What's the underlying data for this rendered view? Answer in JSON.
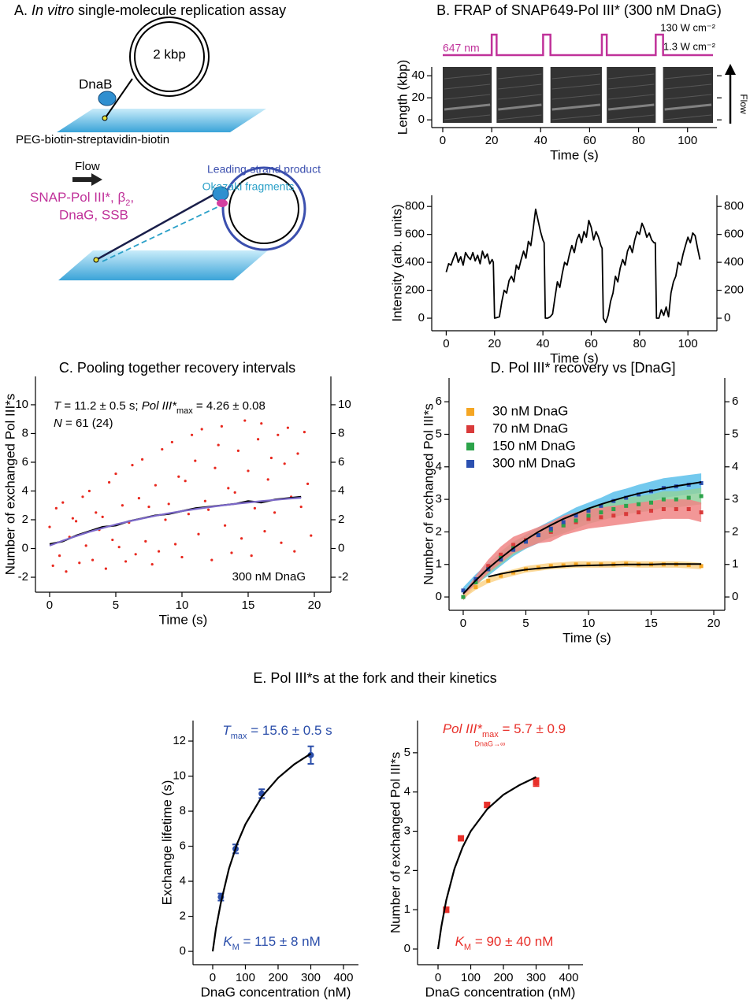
{
  "panel_a": {
    "title": [
      "A. ",
      "In vitro",
      " single-molecule replication assay"
    ],
    "dnab": "DnaB",
    "plasmid": "2 kbp",
    "surface": "PEG-biotin-streptavidin-biotin",
    "flow": "Flow",
    "proteins": [
      "SNAP-Pol III*, β",
      "2",
      ",",
      "DnaG, SSB"
    ],
    "leading": "Leading-strand product",
    "okazaki": "Okazaki fragments"
  },
  "panel_e": {
    "title": "E. Pol III*s at the fork and their kinetics"
  },
  "chart_data": [
    {
      "type": "kymograph",
      "title": "B. FRAP of SNAP649-Pol III* (300 nM DnaG)",
      "xlabel": "Time (s)",
      "ylabel": "Length (kbp)",
      "side_label": "Flow",
      "xlim": [
        -4.5,
        112
      ],
      "ylim": [
        -7,
        48
      ],
      "xticks": [
        0,
        20,
        40,
        60,
        80,
        100
      ],
      "yticks": [
        0,
        20,
        40
      ],
      "pulses": [
        [
          20,
          22
        ],
        [
          41,
          44
        ],
        [
          65,
          67
        ],
        [
          87,
          90
        ]
      ],
      "pulse_color": "#c0329a",
      "pulse_label": "647 nm",
      "high_label": "130 W cm⁻²",
      "low_label": "1.3 W cm⁻²"
    },
    {
      "type": "line",
      "xlabel": "Time (s)",
      "ylabel": "Intensity (arb. units)",
      "xlim": [
        -6,
        112
      ],
      "ylim": [
        -90,
        880
      ],
      "y2lim": [
        -90,
        880
      ],
      "xticks": [
        0,
        20,
        40,
        60,
        80,
        100
      ],
      "yticks": [
        0,
        200,
        400,
        600,
        800
      ],
      "y2ticks": [
        0,
        200,
        400,
        600,
        800
      ],
      "x": [
        0,
        1,
        2,
        3,
        4,
        5,
        6,
        7,
        8,
        9,
        10,
        11,
        12,
        13,
        14,
        15,
        16,
        17,
        18,
        19,
        19.5,
        20,
        21,
        22,
        23,
        24,
        25,
        26,
        27,
        28,
        29,
        30,
        31,
        32,
        33,
        34,
        35,
        36,
        37,
        38,
        39,
        40,
        40.5,
        41,
        42,
        43,
        44,
        45,
        46,
        47,
        48,
        49,
        50,
        51,
        52,
        53,
        54,
        55,
        56,
        57,
        58,
        59,
        60,
        61,
        62,
        63,
        64,
        64.5,
        65,
        66,
        67,
        68,
        69,
        70,
        71,
        72,
        73,
        74,
        75,
        76,
        77,
        78,
        79,
        80,
        81,
        82,
        83,
        84,
        85,
        86,
        86.5,
        87,
        88,
        89,
        90,
        91,
        92,
        93,
        94,
        95,
        96,
        97,
        98,
        99,
        100,
        101,
        102,
        103,
        104,
        105
      ],
      "series": [
        {
          "color": "#000000",
          "values": [
            330,
            390,
            380,
            430,
            470,
            400,
            440,
            380,
            470,
            440,
            420,
            470,
            410,
            450,
            390,
            480,
            430,
            460,
            390,
            420,
            400,
            0,
            5,
            10,
            120,
            200,
            180,
            270,
            300,
            260,
            380,
            350,
            420,
            480,
            430,
            550,
            520,
            640,
            780,
            700,
            620,
            560,
            540,
            0,
            0,
            10,
            30,
            150,
            260,
            220,
            320,
            400,
            380,
            460,
            520,
            470,
            560,
            600,
            540,
            620,
            580,
            700,
            650,
            560,
            620,
            580,
            520,
            500,
            0,
            -30,
            20,
            120,
            180,
            300,
            260,
            360,
            420,
            380,
            480,
            520,
            470,
            560,
            620,
            600,
            680,
            640,
            580,
            610,
            560,
            540,
            540,
            0,
            0,
            60,
            20,
            80,
            10,
            180,
            260,
            300,
            400,
            380,
            460,
            520,
            580,
            540,
            610,
            590,
            500,
            420
          ]
        }
      ]
    },
    {
      "type": "scatter",
      "title": "C. Pooling together recovery intervals",
      "xlabel": "Time (s)",
      "ylabel": "Number of exchanged Pol III*s",
      "xlim": [
        -1.07,
        21.25
      ],
      "ylim": [
        -3.04,
        11.97
      ],
      "y2lim": [
        -3.04,
        11.97
      ],
      "xticks": [
        0,
        5,
        10,
        15,
        20
      ],
      "yticks": [
        -2,
        0,
        2,
        4,
        6,
        8,
        10
      ],
      "y2ticks": [
        -2,
        0,
        2,
        4,
        6,
        8,
        10
      ],
      "annotations": {
        "stats": [
          "T",
          " = 11.2 ± 0.5 s; ",
          "Pol III*",
          "max",
          " = 4.26 ± 0.08"
        ],
        "n": [
          "N",
          " = 61 (24)"
        ],
        "condition": "300 nM DnaG"
      },
      "points": {
        "color": "#e8281e",
        "marker": "circle",
        "x": [
          0,
          0.25,
          0.5,
          0.75,
          1,
          1.25,
          1.5,
          1.75,
          2,
          2.25,
          2.5,
          2.75,
          3,
          3.25,
          3.5,
          3.75,
          4,
          4.25,
          4.5,
          4.75,
          5,
          5.25,
          5.5,
          5.75,
          6,
          6.25,
          6.5,
          6.75,
          7,
          7.25,
          7.5,
          7.75,
          8,
          8.25,
          8.5,
          8.75,
          9,
          9.25,
          9.5,
          9.75,
          10,
          10.25,
          10.5,
          10.75,
          11,
          11.25,
          11.5,
          11.75,
          12,
          12.25,
          12.5,
          12.75,
          13,
          13.25,
          13.5,
          13.75,
          14,
          14.25,
          14.5,
          14.75,
          15,
          15.25,
          15.5,
          15.75,
          16,
          16.25,
          16.5,
          16.75,
          17,
          17.25,
          17.5,
          17.75,
          18,
          18.25,
          18.5,
          18.75,
          19,
          19.25,
          19.5,
          19.75
        ],
        "values": [
          1.5,
          -1.2,
          2.8,
          -0.5,
          3.2,
          -1.6,
          0.8,
          2.1,
          1.9,
          -1.0,
          3.6,
          0.2,
          4.0,
          -0.8,
          2.5,
          1.3,
          2.2,
          -1.4,
          4.6,
          0.6,
          5.2,
          0.1,
          3.0,
          -0.9,
          1.8,
          5.8,
          -0.4,
          3.5,
          6.2,
          0.5,
          2.9,
          -1.1,
          4.4,
          -0.2,
          6.9,
          2.0,
          3.1,
          7.4,
          0.3,
          5.0,
          -0.6,
          4.7,
          2.4,
          7.9,
          6.1,
          1.0,
          8.3,
          3.3,
          2.7,
          -0.8,
          5.6,
          7.2,
          8.5,
          1.6,
          4.2,
          -0.3,
          3.9,
          6.8,
          0.7,
          8.9,
          5.4,
          -0.5,
          2.8,
          7.6,
          8.7,
          1.2,
          4.8,
          6.3,
          2.5,
          7.9,
          0.4,
          5.9,
          8.4,
          3.6,
          -0.2,
          6.6,
          2.9,
          8.1,
          4.5,
          0.9
        ]
      },
      "curves": [
        {
          "color": "#000000",
          "x": [
            0,
            1,
            2,
            3,
            4,
            5,
            6,
            7,
            8,
            9,
            10,
            11,
            12,
            13,
            14,
            15,
            16,
            17,
            18,
            19
          ],
          "values": [
            0.3,
            0.5,
            0.9,
            1.2,
            1.5,
            1.6,
            1.9,
            2.1,
            2.3,
            2.4,
            2.6,
            2.8,
            2.9,
            3.0,
            3.1,
            3.3,
            3.2,
            3.4,
            3.5,
            3.6
          ]
        },
        {
          "color": "#7b68c8",
          "x": [
            0,
            1,
            2,
            3,
            4,
            5,
            6,
            7,
            8,
            9,
            10,
            11,
            12,
            13,
            14,
            15,
            16,
            17,
            18,
            19
          ],
          "values": [
            0.2,
            0.55,
            0.86,
            1.16,
            1.42,
            1.67,
            1.89,
            2.09,
            2.28,
            2.45,
            2.6,
            2.74,
            2.87,
            2.99,
            3.1,
            3.2,
            3.29,
            3.38,
            3.46,
            3.53
          ]
        }
      ]
    },
    {
      "type": "line",
      "title": "D. Pol III* recovery vs [DnaG]",
      "xlabel": "Time (s)",
      "ylabel": "Number of exchanged Pol III*s",
      "xlim": [
        -1.13,
        20.88
      ],
      "ylim": [
        -0.41,
        6.73
      ],
      "y2lim": [
        -0.41,
        6.73
      ],
      "xticks": [
        0,
        5,
        10,
        15,
        20
      ],
      "yticks": [
        0,
        1,
        2,
        3,
        4,
        5,
        6
      ],
      "y2ticks": [
        0,
        1,
        2,
        3,
        4,
        5,
        6
      ],
      "x": [
        0,
        1,
        2,
        3,
        4,
        5,
        6,
        7,
        8,
        9,
        10,
        11,
        12,
        13,
        14,
        15,
        16,
        17,
        18,
        19
      ],
      "series": [
        {
          "name": "30 nM DnaG",
          "color": "#f5a623",
          "band_color": "#fcd48a",
          "marker": "square",
          "values": [
            0,
            0.3,
            0.5,
            0.65,
            0.75,
            0.85,
            0.9,
            0.95,
            0.97,
            1,
            1,
            1,
            1,
            1.02,
            1,
            1,
            1,
            1,
            0.98,
            0.95
          ],
          "errors": [
            0.05,
            0.08,
            0.08,
            0.1,
            0.1,
            0.1,
            0.1,
            0.1,
            0.1,
            0.1,
            0.1,
            0.1,
            0.1,
            0.1,
            0.1,
            0.1,
            0.1,
            0.1,
            0.1,
            0.1
          ]
        },
        {
          "name": "70 nM DnaG",
          "color": "#d93a3a",
          "band_color": "#f08585",
          "marker": "square",
          "values": [
            0,
            0.5,
            0.95,
            1.3,
            1.6,
            1.75,
            1.9,
            2.0,
            2.2,
            2.3,
            2.4,
            2.45,
            2.5,
            2.55,
            2.6,
            2.65,
            2.7,
            2.7,
            2.7,
            2.6
          ],
          "errors": [
            0.1,
            0.15,
            0.2,
            0.25,
            0.25,
            0.25,
            0.25,
            0.3,
            0.3,
            0.3,
            0.3,
            0.3,
            0.3,
            0.3,
            0.3,
            0.3,
            0.3,
            0.3,
            0.3,
            0.3
          ]
        },
        {
          "name": "150 nM DnaG",
          "color": "#2ca34a",
          "band_color": "#8fd19e",
          "marker": "square",
          "values": [
            0,
            0.45,
            0.85,
            1.2,
            1.5,
            1.7,
            1.9,
            2.05,
            2.2,
            2.35,
            2.5,
            2.6,
            2.7,
            2.8,
            2.85,
            2.9,
            3.0,
            3.0,
            3.05,
            3.1
          ],
          "errors": [
            0.1,
            0.12,
            0.15,
            0.2,
            0.2,
            0.2,
            0.22,
            0.22,
            0.25,
            0.25,
            0.25,
            0.25,
            0.25,
            0.25,
            0.25,
            0.25,
            0.25,
            0.25,
            0.25,
            0.25
          ]
        },
        {
          "name": "300 nM DnaG",
          "color": "#2b50b0",
          "band_color": "#5bc0eb",
          "marker": "square",
          "values": [
            0.2,
            0.55,
            0.85,
            1.15,
            1.45,
            1.7,
            1.9,
            2.1,
            2.3,
            2.5,
            2.65,
            2.8,
            2.95,
            3.05,
            3.15,
            3.25,
            3.35,
            3.4,
            3.45,
            3.5
          ],
          "errors": [
            0.1,
            0.15,
            0.2,
            0.2,
            0.2,
            0.22,
            0.25,
            0.25,
            0.25,
            0.25,
            0.25,
            0.25,
            0.28,
            0.28,
            0.3,
            0.3,
            0.3,
            0.3,
            0.3,
            0.3
          ]
        }
      ],
      "fits": [
        {
          "color": "#000000",
          "values": [
            null,
            null,
            0.62,
            0.71,
            0.78,
            0.84,
            0.88,
            0.91,
            0.94,
            0.96,
            0.97,
            0.98,
            0.99,
            1.0,
            1.0,
            1.0,
            1.01,
            1.01,
            1.01,
            1.01
          ]
        },
        {
          "color": "#000000",
          "values": [
            0.1,
            0.51,
            0.88,
            1.2,
            1.5,
            1.76,
            2.0,
            2.21,
            2.4,
            2.56,
            2.72,
            2.85,
            2.97,
            3.08,
            3.18,
            3.26,
            3.34,
            3.41,
            3.47,
            3.53
          ]
        }
      ]
    },
    {
      "type": "scatter",
      "xlabel": "DnaG concentration (nM)",
      "ylabel": "Exchange lifetime (s)",
      "xlim": [
        -60.2,
        445.8
      ],
      "ylim": [
        -0.76,
        13.17
      ],
      "xticks": [
        0,
        100,
        200,
        300,
        400
      ],
      "yticks": [
        0,
        2,
        4,
        6,
        8,
        10,
        12
      ],
      "annotations": {
        "top": [
          "T",
          "max",
          " = 15.6 ± 0.5 s"
        ],
        "bottom": [
          "K",
          "M",
          " = 115 ± 8 nM"
        ],
        "color": "#2b4eaa"
      },
      "points": {
        "color": "#2b4eaa",
        "marker": "circle",
        "x": [
          25,
          70,
          150,
          300
        ],
        "values": [
          3.1,
          5.85,
          9.0,
          11.2
        ],
        "errors": [
          0.2,
          0.25,
          0.25,
          0.5
        ]
      },
      "curves": [
        {
          "color": "#000000",
          "x": [
            0,
            10,
            25,
            50,
            75,
            100,
            150,
            200,
            250,
            300
          ],
          "values": [
            0,
            1.3,
            2.79,
            4.73,
            6.15,
            7.25,
            8.82,
            9.9,
            10.68,
            11.28
          ]
        }
      ]
    },
    {
      "type": "scatter",
      "xlabel": "DnaG concentration (nM)",
      "ylabel": "Number of exchanged Pol III*s",
      "xlim": [
        -62.7,
        443.4
      ],
      "ylim": [
        -0.4,
        5.82
      ],
      "xticks": [
        0,
        100,
        200,
        300,
        400
      ],
      "yticks": [
        0,
        1,
        2,
        3,
        4,
        5
      ],
      "annotations": {
        "top": [
          "Pol III*",
          "max",
          " = 5.7 ± 0.9",
          "DnaG→∞"
        ],
        "bottom": [
          "K",
          "M",
          " = 90 ± 40 nM"
        ],
        "color": "#e8302a"
      },
      "points": {
        "color": "#e8302a",
        "marker": "square",
        "x": [
          25,
          70,
          150,
          300
        ],
        "values": [
          1.0,
          2.82,
          3.67,
          4.25
        ],
        "errors": [
          0.06,
          0.06,
          0.06,
          0.1
        ]
      },
      "curves": [
        {
          "color": "#000000",
          "x": [
            0,
            10,
            25,
            50,
            75,
            100,
            150,
            200,
            250,
            300
          ],
          "values": [
            0,
            0.57,
            1.24,
            2.04,
            2.59,
            3.0,
            3.56,
            3.93,
            4.18,
            4.38
          ]
        }
      ]
    }
  ]
}
